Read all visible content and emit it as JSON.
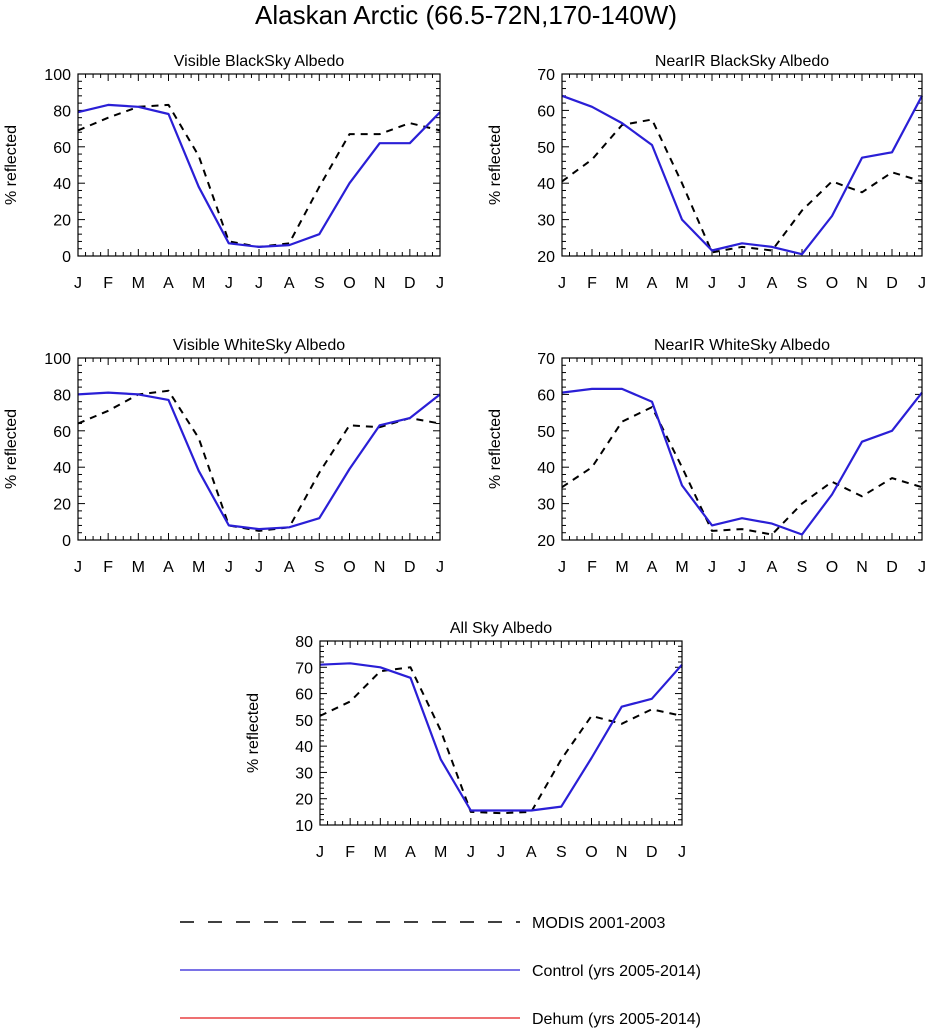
{
  "figure": {
    "title": "Alaskan Arctic (66.5-72N,170-140W)"
  },
  "legend": [
    {
      "name": "MODIS 2001-2003",
      "color": "#000000",
      "dash": true
    },
    {
      "name": "Control (yrs 2005-2014)",
      "color": "#2a1fd6",
      "dash": false
    },
    {
      "name": "Dehum (yrs 2005-2014)",
      "color": "#e41a1c",
      "dash": false
    }
  ],
  "chart_data": [
    {
      "type": "line",
      "title": "Visible BlackSky Albedo",
      "xlabel": "",
      "ylabel": "% reflected",
      "categories": [
        "J",
        "F",
        "M",
        "A",
        "M",
        "J",
        "J",
        "A",
        "S",
        "O",
        "N",
        "D",
        "J"
      ],
      "ylim": [
        0,
        100
      ],
      "yticks": [
        0,
        20,
        40,
        60,
        80,
        100
      ],
      "series": [
        {
          "name": "MODIS 2001-2003",
          "values": [
            69,
            76,
            82,
            83,
            55,
            8,
            5,
            7,
            38,
            67,
            67,
            73,
            69
          ]
        },
        {
          "name": "Control (yrs 2005-2014)",
          "values": [
            79,
            83,
            82,
            78,
            38,
            7,
            5,
            6,
            12,
            40,
            62,
            62,
            79
          ]
        }
      ]
    },
    {
      "type": "line",
      "title": "NearIR BlackSky Albedo",
      "xlabel": "",
      "ylabel": "% reflected",
      "categories": [
        "J",
        "F",
        "M",
        "A",
        "M",
        "J",
        "J",
        "A",
        "S",
        "O",
        "N",
        "D",
        "J"
      ],
      "ylim": [
        20,
        70
      ],
      "yticks": [
        20,
        30,
        40,
        50,
        60,
        70
      ],
      "series": [
        {
          "name": "MODIS 2001-2003",
          "values": [
            40.5,
            46.5,
            56,
            57.5,
            40,
            21,
            22.5,
            21.5,
            32.5,
            40.5,
            37.5,
            43,
            40.5
          ]
        },
        {
          "name": "Control (yrs 2005-2014)",
          "values": [
            64,
            61,
            56.5,
            50.5,
            30,
            21.5,
            23.5,
            22.5,
            20.5,
            31,
            47,
            48.5,
            64
          ]
        }
      ]
    },
    {
      "type": "line",
      "title": "Visible WhiteSky Albedo",
      "xlabel": "",
      "ylabel": "% reflected",
      "categories": [
        "J",
        "F",
        "M",
        "A",
        "M",
        "J",
        "J",
        "A",
        "S",
        "O",
        "N",
        "D",
        "J"
      ],
      "ylim": [
        0,
        100
      ],
      "yticks": [
        0,
        20,
        40,
        60,
        80,
        100
      ],
      "series": [
        {
          "name": "MODIS 2001-2003",
          "values": [
            64,
            71,
            80,
            82,
            56,
            8,
            5,
            7,
            37,
            63,
            62,
            67,
            64
          ]
        },
        {
          "name": "Control (yrs 2005-2014)",
          "values": [
            80,
            81,
            80,
            77,
            38,
            8,
            6,
            7,
            12,
            39,
            63,
            67,
            80
          ]
        }
      ]
    },
    {
      "type": "line",
      "title": "NearIR WhiteSky Albedo",
      "xlabel": "",
      "ylabel": "% reflected",
      "categories": [
        "J",
        "F",
        "M",
        "A",
        "M",
        "J",
        "J",
        "A",
        "S",
        "O",
        "N",
        "D",
        "J"
      ],
      "ylim": [
        20,
        70
      ],
      "yticks": [
        20,
        30,
        40,
        50,
        60,
        70
      ],
      "series": [
        {
          "name": "MODIS 2001-2003",
          "values": [
            34.5,
            40,
            52.5,
            56.5,
            40,
            22.5,
            23,
            21.5,
            30,
            36,
            32,
            37,
            34.5
          ]
        },
        {
          "name": "Control (yrs 2005-2014)",
          "values": [
            60.5,
            61.5,
            61.5,
            58,
            35,
            24,
            26,
            24.5,
            21.5,
            32.5,
            47,
            50,
            60.5
          ]
        }
      ]
    },
    {
      "type": "line",
      "title": "All Sky Albedo",
      "xlabel": "",
      "ylabel": "% reflected",
      "categories": [
        "J",
        "F",
        "M",
        "A",
        "M",
        "J",
        "J",
        "A",
        "S",
        "O",
        "N",
        "D",
        "J"
      ],
      "ylim": [
        10,
        80
      ],
      "yticks": [
        10,
        20,
        30,
        40,
        50,
        60,
        70,
        80
      ],
      "series": [
        {
          "name": "MODIS 2001-2003",
          "values": [
            51.5,
            57,
            68.5,
            70,
            46,
            15,
            14.5,
            15,
            35,
            51.5,
            48.5,
            54,
            51.5
          ]
        },
        {
          "name": "Control (yrs 2005-2014)",
          "values": [
            71,
            71.5,
            70,
            66,
            35,
            15.5,
            15.5,
            15.5,
            17,
            35.5,
            55,
            58,
            71
          ]
        }
      ]
    }
  ]
}
